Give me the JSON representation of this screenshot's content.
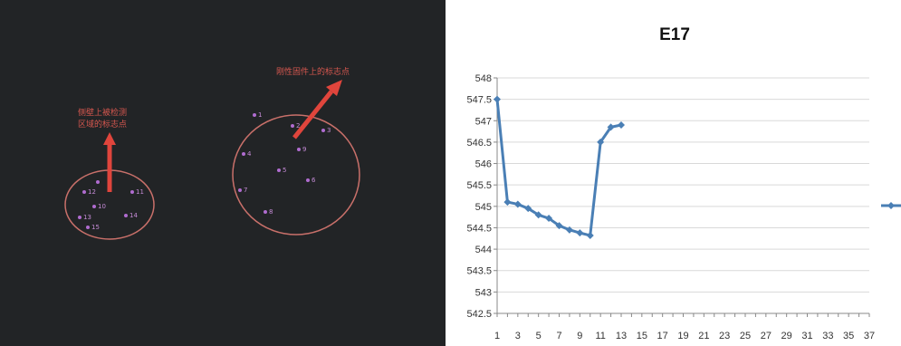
{
  "photo": {
    "annotation_left": [
      "侧壁上被检测",
      "区域的标志点"
    ],
    "annotation_right": "刚性固件上的标志点",
    "left_group_labels": [
      "12",
      "11",
      "10",
      "13",
      "14",
      "15"
    ],
    "right_group_labels": [
      "1",
      "2",
      "3",
      "4",
      "5",
      "6",
      "7",
      "8",
      "9"
    ],
    "colors": {
      "annotation": "#d6574f",
      "circle": "#c9706a",
      "marker": "#b06cd0"
    }
  },
  "chart_data": {
    "type": "line",
    "title": "E17",
    "xlabel": "",
    "ylabel": "",
    "x_ticks": [
      "1",
      "3",
      "5",
      "7",
      "9",
      "11",
      "13",
      "15",
      "17",
      "19",
      "21",
      "23",
      "25",
      "27",
      "29",
      "31",
      "33",
      "35",
      "37"
    ],
    "y_ticks": [
      "548",
      "547.5",
      "547",
      "546.5",
      "546",
      "545.5",
      "545",
      "544.5",
      "544",
      "543.5",
      "543",
      "542.5"
    ],
    "xlim": [
      1,
      37
    ],
    "ylim": [
      542.5,
      548
    ],
    "grid": true,
    "series": [
      {
        "color": "#4a7fb5",
        "x": [
          1,
          2,
          3,
          4,
          5,
          6,
          7,
          8,
          9,
          10,
          11,
          12,
          13
        ],
        "y": [
          547.5,
          545.1,
          545.05,
          544.95,
          544.8,
          544.72,
          544.55,
          544.45,
          544.38,
          544.32,
          546.5,
          546.85,
          546.9
        ]
      }
    ],
    "legend": {
      "position": "right",
      "marker_color": "#4a7fb5"
    }
  }
}
